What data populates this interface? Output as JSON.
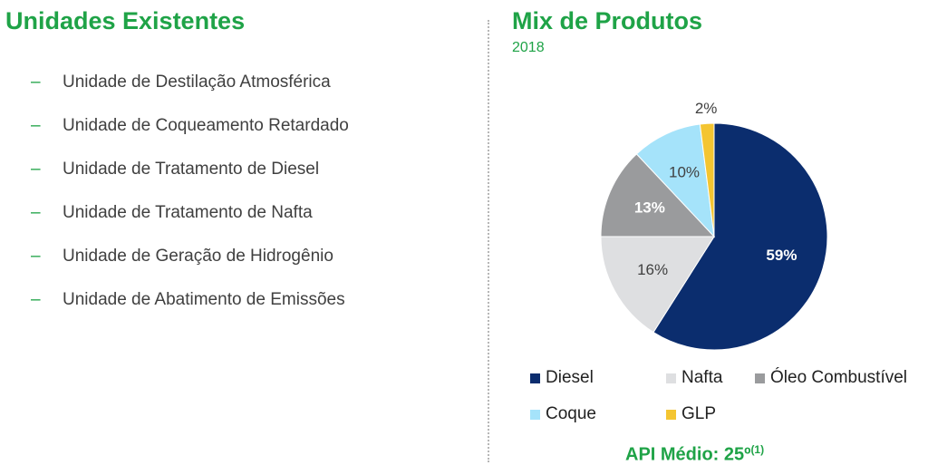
{
  "left_panel": {
    "title": "Unidades Existentes",
    "items": [
      "Unidade de Destilação Atmosférica",
      "Unidade de Coqueamento Retardado",
      "Unidade de Tratamento de Diesel",
      "Unidade de Tratamento de Nafta",
      "Unidade de Geração de Hidrogênio",
      "Unidade de Abatimento de Emissões"
    ]
  },
  "right_panel": {
    "title": "Mix de Produtos",
    "subtitle": "2018",
    "api_label": "API Médio: 25º",
    "api_footnote": "(1)"
  },
  "chart_data": {
    "type": "pie",
    "title": "Mix de Produtos",
    "subtitle": "2018",
    "slices": [
      {
        "label": "Diesel",
        "value": 59,
        "display": "59%",
        "color": "#0b2d6e",
        "text_color": "#ffffff",
        "bold": true
      },
      {
        "label": "Nafta",
        "value": 16,
        "display": "16%",
        "color": "#dedfe1",
        "text_color": "#404040",
        "bold": false
      },
      {
        "label": "Óleo Combustível",
        "value": 13,
        "display": "13%",
        "color": "#9a9b9d",
        "text_color": "#ffffff",
        "bold": true
      },
      {
        "label": "Coque",
        "value": 10,
        "display": "10%",
        "color": "#a5e3fa",
        "text_color": "#404040",
        "bold": false
      },
      {
        "label": "GLP",
        "value": 2,
        "display": "2%",
        "color": "#f4c531",
        "text_color": "#404040",
        "bold": false
      }
    ],
    "legend_placement": "bottom"
  }
}
